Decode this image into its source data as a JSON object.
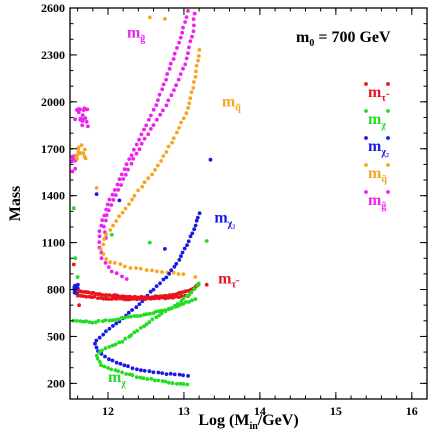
{
  "chart_data": {
    "type": "scatter",
    "annotation": {
      "main": "m",
      "sub": "0",
      "rest": " = 700 GeV"
    },
    "xlabel": {
      "main": "Log (M",
      "sub": "in",
      "rest": "/GeV)"
    },
    "ylabel": "Mass",
    "xlim": [
      11.5,
      16.2
    ],
    "ylim": [
      100,
      2600
    ],
    "x_ticks": [
      "12",
      "13",
      "14",
      "15",
      "16"
    ],
    "y_ticks": [
      "200",
      "500",
      "800",
      "1100",
      "1400",
      "1700",
      "2000",
      "2300",
      "2600"
    ],
    "grid": false,
    "legend": {
      "placement": "right",
      "entries": [
        {
          "key": "stau",
          "main": "m",
          "sub": "τ̃",
          "color": "#e8141c"
        },
        {
          "key": "chi",
          "main": "m",
          "sub": "χ",
          "color": "#22dd22"
        },
        {
          "key": "chi2",
          "main": "m",
          "sub": "χ₂",
          "color": "#1a1ae6"
        },
        {
          "key": "squark",
          "main": "m",
          "sub": "q̃",
          "color": "#f5a623"
        },
        {
          "key": "gluino",
          "main": "m",
          "sub": "g̃",
          "color": "#ee22ee"
        }
      ]
    },
    "curve_labels": [
      {
        "key": "gluino",
        "main": "m",
        "sub": "g̃",
        "color": "#ee22ee",
        "at": [
          12.25,
          2410
        ]
      },
      {
        "key": "squark",
        "main": "m",
        "sub": "q̃",
        "color": "#f5a623",
        "at": [
          13.5,
          1970
        ]
      },
      {
        "key": "chi2",
        "main": "m",
        "sub": "χ₂",
        "color": "#1a1ae6",
        "at": [
          13.4,
          1230
        ]
      },
      {
        "key": "stau",
        "main": "m",
        "sub": "τ̃",
        "color": "#e8141c",
        "at": [
          13.45,
          840
        ]
      },
      {
        "key": "chi",
        "main": "m",
        "sub": "χ",
        "color": "#22dd22",
        "at": [
          12.0,
          210
        ]
      }
    ],
    "series": [
      {
        "key": "gluino",
        "color": "#ee22ee",
        "segments": [
          {
            "type": "curve",
            "points": [
              [
                13.05,
                2580
              ],
              [
                12.95,
                2400
              ],
              [
                12.8,
                2200
              ],
              [
                12.65,
                2000
              ],
              [
                12.45,
                1800
              ],
              [
                12.3,
                1650
              ],
              [
                12.15,
                1500
              ],
              [
                12.0,
                1350
              ],
              [
                11.9,
                1200
              ],
              [
                11.88,
                1100
              ],
              [
                11.92,
                1000
              ],
              [
                12.05,
                920
              ],
              [
                12.25,
                870
              ]
            ],
            "n": 55
          },
          {
            "type": "curve",
            "points": [
              [
                13.15,
                2600
              ],
              [
                13.12,
                2450
              ],
              [
                13.02,
                2250
              ],
              [
                12.85,
                2050
              ],
              [
                12.6,
                1850
              ],
              [
                12.35,
                1650
              ],
              [
                12.15,
                1450
              ],
              [
                12.0,
                1300
              ],
              [
                11.95,
                1200
              ],
              [
                11.97,
                1130
              ]
            ],
            "n": 45
          },
          {
            "type": "cluster",
            "center": [
              11.65,
              1900
            ],
            "spread": [
              0.18,
              120
            ],
            "n": 18
          },
          {
            "type": "cluster",
            "center": [
              11.55,
              1600
            ],
            "spread": [
              0.06,
              120
            ],
            "n": 10
          }
        ]
      },
      {
        "key": "squark",
        "color": "#f5a623",
        "segments": [
          {
            "type": "curve",
            "points": [
              [
                13.2,
                2330
              ],
              [
                13.15,
                2150
              ],
              [
                13.05,
                1950
              ],
              [
                12.85,
                1750
              ],
              [
                12.6,
                1550
              ],
              [
                12.35,
                1400
              ],
              [
                12.15,
                1270
              ],
              [
                11.98,
                1150
              ],
              [
                11.9,
                1050
              ],
              [
                12.0,
                980
              ],
              [
                12.3,
                940
              ],
              [
                12.7,
                910
              ],
              [
                13.0,
                900
              ]
            ],
            "n": 60
          },
          {
            "type": "cluster",
            "center": [
              11.65,
              1680
            ],
            "spread": [
              0.14,
              100
            ],
            "n": 14
          },
          {
            "type": "points",
            "points": [
              [
                12.55,
                2540
              ],
              [
                12.75,
                2530
              ],
              [
                11.85,
                1450
              ],
              [
                13.15,
                880
              ],
              [
                13.1,
                780
              ],
              [
                11.6,
                760
              ]
            ]
          }
        ]
      },
      {
        "key": "chi2",
        "color": "#1a1ae6",
        "segments": [
          {
            "type": "curve",
            "points": [
              [
                13.2,
                1290
              ],
              [
                13.15,
                1200
              ],
              [
                13.05,
                1100
              ],
              [
                12.95,
                1000
              ],
              [
                12.8,
                900
              ],
              [
                12.6,
                800
              ],
              [
                12.4,
                700
              ],
              [
                12.2,
                620
              ],
              [
                12.0,
                540
              ],
              [
                11.85,
                480
              ],
              [
                11.82,
                440
              ],
              [
                11.9,
                390
              ],
              [
                12.1,
                330
              ],
              [
                12.4,
                290
              ],
              [
                12.75,
                260
              ],
              [
                13.05,
                250
              ]
            ],
            "n": 65
          },
          {
            "type": "cluster",
            "center": [
              11.58,
              800
            ],
            "spread": [
              0.06,
              60
            ],
            "n": 14
          },
          {
            "type": "points",
            "points": [
              [
                11.85,
                1410
              ],
              [
                12.15,
                1370
              ],
              [
                13.35,
                1630
              ],
              [
                12.75,
                1060
              ]
            ]
          }
        ]
      },
      {
        "key": "stau",
        "color": "#e8141c",
        "segments": [
          {
            "type": "curve",
            "points": [
              [
                11.6,
                790
              ],
              [
                11.9,
                770
              ],
              [
                12.2,
                755
              ],
              [
                12.5,
                750
              ],
              [
                12.8,
                760
              ],
              [
                13.05,
                790
              ],
              [
                13.2,
                830
              ]
            ],
            "n": 55
          },
          {
            "type": "curve",
            "points": [
              [
                11.6,
                760
              ],
              [
                11.9,
                745
              ],
              [
                12.2,
                738
              ],
              [
                12.5,
                740
              ],
              [
                12.8,
                748
              ],
              [
                13.05,
                760
              ]
            ],
            "n": 40
          },
          {
            "type": "points",
            "points": [
              [
                11.55,
                960
              ],
              [
                13.3,
                830
              ],
              [
                11.62,
                700
              ]
            ]
          }
        ]
      },
      {
        "key": "chi",
        "color": "#22dd22",
        "segments": [
          {
            "type": "curve",
            "points": [
              [
                13.2,
                840
              ],
              [
                13.1,
                780
              ],
              [
                12.95,
                720
              ],
              [
                12.7,
                640
              ],
              [
                12.45,
                560
              ],
              [
                12.2,
                470
              ],
              [
                11.95,
                420
              ],
              [
                11.85,
                380
              ],
              [
                11.9,
                320
              ],
              [
                12.1,
                280
              ],
              [
                12.4,
                240
              ],
              [
                12.75,
                210
              ],
              [
                13.05,
                190
              ]
            ],
            "n": 62
          },
          {
            "type": "curve",
            "points": [
              [
                11.55,
                600
              ],
              [
                11.8,
                590
              ],
              [
                12.1,
                610
              ],
              [
                12.5,
                640
              ],
              [
                12.9,
                690
              ],
              [
                13.15,
                740
              ]
            ],
            "n": 40
          },
          {
            "type": "points",
            "points": [
              [
                11.55,
                1320
              ],
              [
                12.05,
                1150
              ],
              [
                13.3,
                1110
              ],
              [
                12.55,
                1100
              ],
              [
                11.57,
                1000
              ],
              [
                11.6,
                880
              ]
            ]
          }
        ]
      }
    ]
  }
}
